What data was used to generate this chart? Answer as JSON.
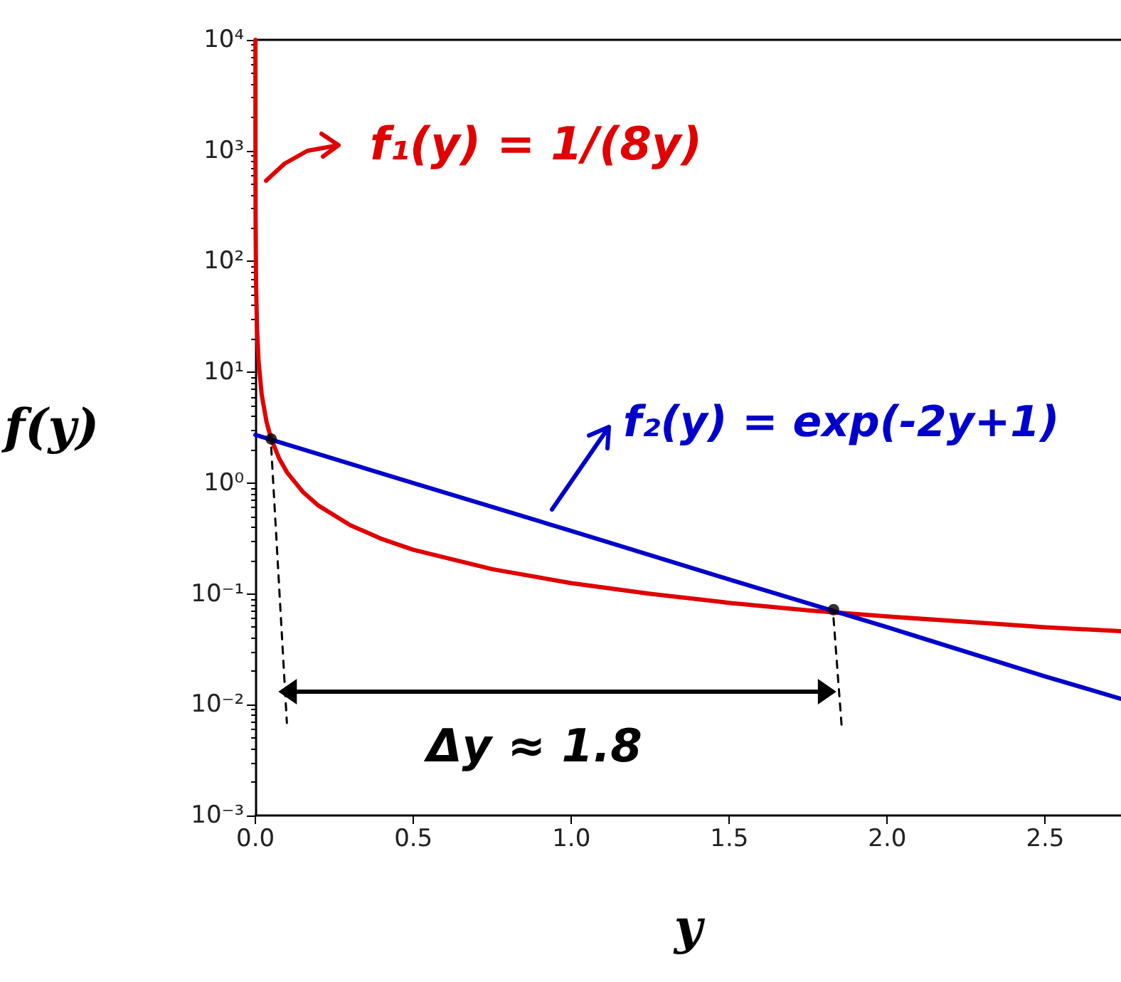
{
  "chart_data": {
    "type": "line",
    "xlabel": "y",
    "ylabel": "f(y)",
    "log": "y",
    "xlim": [
      0,
      2.74
    ],
    "ylim": [
      0.001,
      10000
    ],
    "xticks": [
      {
        "value": 0,
        "label": "0.0"
      },
      0.5,
      {
        "value": 1,
        "label": "1.0"
      },
      1.5,
      {
        "value": 2,
        "label": "2.0"
      },
      2.5
    ],
    "yticks": [
      {
        "value": 0.001,
        "label": "10⁻³"
      },
      {
        "value": 0.01,
        "label": "10⁻²"
      },
      {
        "value": 0.1,
        "label": "10⁻¹"
      },
      {
        "value": 1,
        "label": "10⁰"
      },
      {
        "value": 10,
        "label": "10¹"
      },
      {
        "value": 100,
        "label": "10²"
      },
      {
        "value": 1000,
        "label": "10³"
      },
      {
        "value": 10000,
        "label": "10⁴"
      }
    ],
    "line_style": "solid",
    "series": [
      {
        "color": "#e00000",
        "x": [
          1.25e-05,
          0.0001,
          0.0005,
          0.002,
          0.005,
          0.01,
          0.02,
          0.035,
          0.05,
          0.075,
          0.1,
          0.15,
          0.2,
          0.3,
          0.4,
          0.5,
          0.75,
          1,
          1.25,
          1.5,
          1.75,
          2,
          2.25,
          2.5,
          2.74
        ],
        "values": [
          10000,
          1250,
          250,
          62.5,
          25,
          12.5,
          6.25,
          3.57,
          2.5,
          1.67,
          1.25,
          0.833,
          0.625,
          0.417,
          0.313,
          0.25,
          0.167,
          0.125,
          0.1,
          0.083,
          0.071,
          0.0625,
          0.056,
          0.05,
          0.046
        ]
      },
      {
        "color": "#0000cc",
        "x": [
          0,
          0.5,
          1,
          1.5,
          2,
          2.5,
          2.74
        ],
        "values": [
          2.72,
          1,
          0.37,
          0.135,
          0.05,
          0.018,
          0.0113
        ]
      },
      {
        "type": "scatter",
        "marker": "circle",
        "color": "#000000",
        "x": [
          0.05,
          1.83
        ],
        "values": [
          2.5,
          0.072
        ]
      }
    ],
    "annotations": [
      "f₁(y) = 1/(8y)",
      "f₂(y) = exp(-2y+1)",
      "Δy ≈ 1.8"
    ]
  }
}
